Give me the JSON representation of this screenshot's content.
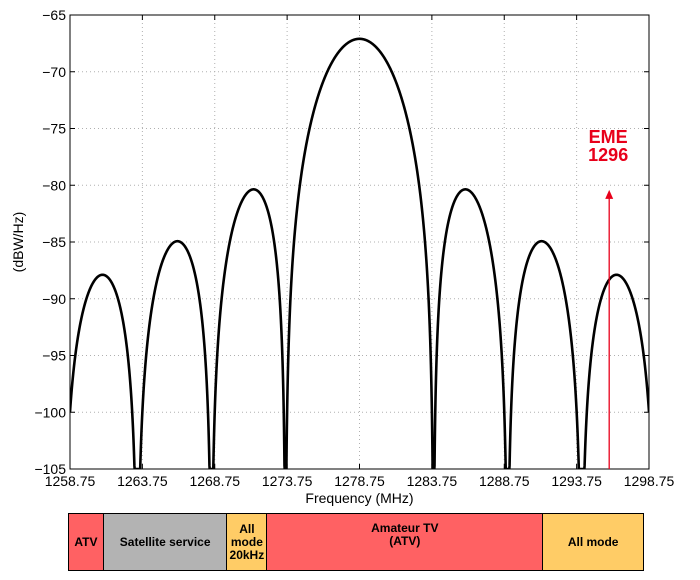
{
  "chart_data": {
    "type": "line",
    "title": "",
    "xlabel": "Frequency (MHz)",
    "ylabel": "(dBW/Hz)",
    "xlim": [
      1258.75,
      1298.75
    ],
    "ylim": [
      -105,
      -65
    ],
    "xticks": [
      1258.75,
      1263.75,
      1268.75,
      1273.75,
      1278.75,
      1283.75,
      1288.75,
      1293.75,
      1298.75
    ],
    "xtick_labels": [
      "1258.75",
      "1263.75",
      "1268.75",
      "1273.75",
      "1278.75",
      "1283.75",
      "1288.75",
      "1293.75",
      "1298.75"
    ],
    "yticks": [
      -65,
      -70,
      -75,
      -80,
      -85,
      -90,
      -95,
      -100,
      -105
    ],
    "ytick_labels": [
      "−65",
      "−70",
      "−75",
      "−80",
      "−85",
      "−90",
      "−95",
      "−100",
      "−105"
    ],
    "grid": true,
    "series": [
      {
        "description": "sinc-squared power spectral density, main lobe at 1278.75 MHz, nulls every 5.115 MHz",
        "center_mhz": 1278.75,
        "null_spacing_mhz": 5.115,
        "peak_dbw_hz": -67.1,
        "color": "#000000"
      }
    ],
    "annotation": {
      "lines": [
        "EME",
        "1296"
      ],
      "x": 1296.0,
      "y_from": -105,
      "y_to": -80.5,
      "color": "#e8001a"
    }
  },
  "band_bar": [
    {
      "lines": [
        "ATV"
      ],
      "color": "#ff6163",
      "weight": 35
    },
    {
      "lines": [
        "Satellite service"
      ],
      "color": "#b3b3b3",
      "weight": 124
    },
    {
      "lines": [
        "All",
        "mode",
        "20kHz"
      ],
      "color": "#ffcc66",
      "weight": 40
    },
    {
      "lines": [
        "Amateur TV",
        "(ATV)"
      ],
      "color": "#ff6163",
      "weight": 277
    },
    {
      "lines": [
        "All mode"
      ],
      "color": "#ffcc66",
      "weight": 100
    }
  ]
}
